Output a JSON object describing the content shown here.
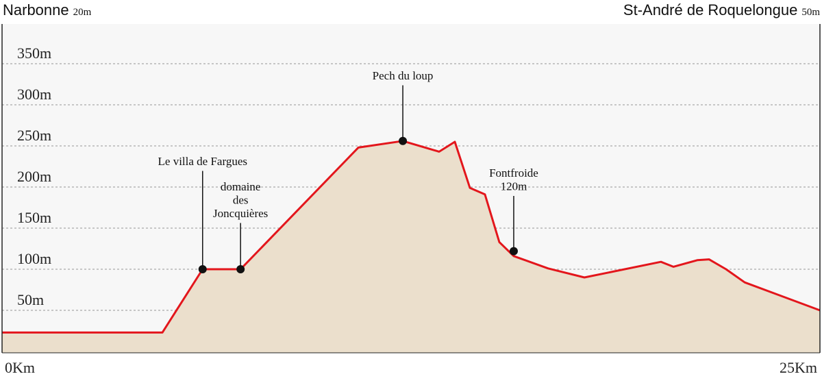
{
  "chart_data": {
    "type": "area",
    "start_name": "Narbonne",
    "start_alt": "20m",
    "end_name": "St-André de Roquelongue",
    "end_alt": "50m",
    "x": [
      0,
      4.9,
      6.13,
      7.29,
      10.89,
      12.25,
      13.36,
      13.84,
      14.3,
      14.76,
      15.2,
      15.64,
      16.69,
      17.8,
      20.14,
      20.52,
      21.25,
      21.61,
      22.13,
      22.7,
      25
    ],
    "values": [
      23,
      23,
      100,
      100,
      248,
      256,
      243,
      255,
      199,
      191,
      133,
      116,
      101,
      90,
      109,
      103,
      111,
      112,
      100,
      84,
      50
    ],
    "color": "#e3161c",
    "fill": "#ebdfcc",
    "xlim": [
      0,
      25
    ],
    "xticks": [
      {
        "value": 0,
        "label": "0Km"
      },
      {
        "value": 25,
        "label": "25Km"
      }
    ],
    "ylim": [
      0,
      400
    ],
    "yticks": [
      {
        "value": 50,
        "label": "50m"
      },
      {
        "value": 100,
        "label": "100m"
      },
      {
        "value": 150,
        "label": "150m"
      },
      {
        "value": 200,
        "label": "200m"
      },
      {
        "value": 250,
        "label": "250m"
      },
      {
        "value": 300,
        "label": "300m"
      },
      {
        "value": 350,
        "label": "350m"
      }
    ],
    "grid": true,
    "annotations": [
      {
        "x": 6.13,
        "y": 100,
        "lines": [
          "Le villa de Fargues"
        ]
      },
      {
        "x": 7.29,
        "y": 100,
        "lines": [
          "domaine",
          "des",
          "Joncquières"
        ]
      },
      {
        "x": 12.25,
        "y": 256,
        "lines": [
          "Pech du loup"
        ]
      },
      {
        "x": 15.64,
        "y": 122,
        "lines": [
          "Fontfroide",
          "120m"
        ]
      }
    ]
  }
}
